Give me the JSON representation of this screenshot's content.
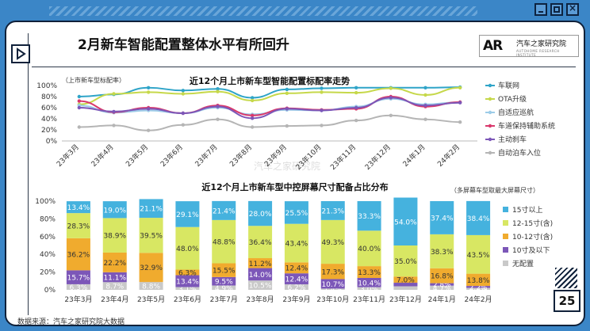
{
  "page": {
    "title": "2月新车智能配置整体水平有所回升",
    "logo_text": "汽车之家研究院",
    "logo_mark": "AR",
    "logo_sub": "AUTOHOME RESEARCH INSTITUTE",
    "page_number": "25",
    "source": "数据来源：汽车之家研究院大数据",
    "watermark": "汽车之家研究院"
  },
  "chart_data": [
    {
      "type": "line",
      "title": "近12个月上市新车型智能配置标配率走势",
      "ylabel": "（上市新车型标配率）",
      "categories": [
        "23年3月",
        "23年4月",
        "23年5月",
        "23年6月",
        "23年7月",
        "23年8月",
        "23年9月",
        "23年10月",
        "23年11月",
        "23年12月",
        "24年1月",
        "24年2月"
      ],
      "yticks": [
        "0%",
        "20%",
        "40%",
        "60%",
        "80%",
        "100%"
      ],
      "ylim": [
        0,
        100
      ],
      "series": [
        {
          "name": "车联网",
          "color": "#2fa4c8",
          "values": [
            80,
            84,
            96,
            91,
            94,
            78,
            93,
            95,
            96,
            96,
            96,
            97
          ]
        },
        {
          "name": "OTA升级",
          "color": "#c6d84a",
          "values": [
            66,
            85,
            88,
            85,
            89,
            73,
            86,
            88,
            87,
            95,
            83,
            96
          ]
        },
        {
          "name": "自适应巡航",
          "color": "#9ccce8",
          "values": [
            64,
            51,
            55,
            50,
            60,
            48,
            56,
            55,
            62,
            76,
            66,
            70
          ]
        },
        {
          "name": "车道保持辅助系统",
          "color": "#d9386c",
          "values": [
            72,
            52,
            60,
            50,
            64,
            46,
            59,
            56,
            58,
            80,
            62,
            70
          ]
        },
        {
          "name": "主动刹车",
          "color": "#7c57b8",
          "values": [
            60,
            53,
            58,
            50,
            62,
            41,
            58,
            55,
            60,
            78,
            64,
            69
          ]
        },
        {
          "name": "自动泊车入位",
          "color": "#b5b5b5",
          "values": [
            25,
            28,
            19,
            29,
            39,
            25,
            27,
            28,
            37,
            46,
            39,
            34
          ]
        }
      ]
    },
    {
      "type": "bar",
      "stacked": true,
      "title": "近12个月上市新车型中控屏幕尺寸配备占比分布",
      "note": "（多屏幕车型取最大屏幕尺寸）",
      "categories": [
        "23年3月",
        "23年4月",
        "23年5月",
        "23年6月",
        "23年7月",
        "23年8月",
        "23年9月",
        "23年10月",
        "23年11月",
        "23年12月",
        "24年1月",
        "24年2月"
      ],
      "yticks": [
        "0%",
        "20%",
        "40%",
        "60%",
        "80%",
        "100%"
      ],
      "ylim": [
        0,
        100
      ],
      "series": [
        {
          "name": "无配置",
          "color": "#c9c9c9",
          "values": [
            6.3,
            8.7,
            8.8,
            3.1,
            4.9,
            10.5,
            6.2,
            1.4,
            3.0,
            4.0,
            4.7,
            2.2
          ],
          "labels": [
            "6.3%",
            "8.7%",
            "8.8%",
            "3.1%",
            "4.9%",
            "10.5%",
            "6.2%",
            "1.4%",
            "3.0%",
            "",
            "4.7%",
            "2.2%"
          ]
        },
        {
          "name": "10寸及以下",
          "color": "#7c57b8",
          "values": [
            15.7,
            11.1,
            0.0,
            13.4,
            9.5,
            14.0,
            12.4,
            10.7,
            10.4,
            4.0,
            2.8,
            2.2
          ],
          "labels": [
            "15.7%",
            "11.1%",
            "",
            "13.4%",
            "9.5%",
            "14.0%",
            "12.4%",
            "10.7%",
            "10.4%",
            "",
            "2.8%",
            "2.2%"
          ]
        },
        {
          "name": "10-12寸(含)",
          "color": "#f0ab2e",
          "values": [
            36.2,
            22.2,
            32.9,
            6.3,
            15.5,
            11.2,
            12.4,
            17.3,
            13.3,
            7.0,
            16.8,
            13.8
          ],
          "labels": [
            "36.2%",
            "22.2%",
            "32.9%",
            "6.3%",
            "15.5%",
            "11.2%",
            "12.4%",
            "17.3%",
            "13.3%",
            "7.0%",
            "16.8%",
            "13.8%"
          ]
        },
        {
          "name": "12-15寸(含)",
          "color": "#d8e763",
          "values": [
            28.3,
            38.9,
            39.5,
            48.0,
            48.8,
            36.4,
            43.4,
            49.3,
            40.0,
            35.0,
            38.3,
            43.5
          ],
          "labels": [
            "28.3%",
            "38.9%",
            "39.5%",
            "48.0%",
            "48.8%",
            "36.4%",
            "43.4%",
            "49.3%",
            "40.0%",
            "35.0%",
            "38.3%",
            "43.5%"
          ]
        },
        {
          "name": "15寸以上",
          "color": "#45b2de",
          "values": [
            13.4,
            19.0,
            21.1,
            29.1,
            21.4,
            28.0,
            25.5,
            21.3,
            33.3,
            54.0,
            37.4,
            38.4
          ],
          "labels": [
            "13.4%",
            "19.0%",
            "21.1%",
            "29.1%",
            "21.4%",
            "28.0%",
            "25.5%",
            "21.3%",
            "33.3%",
            "54.0%",
            "37.4%",
            "38.4%"
          ]
        }
      ],
      "legend_order": [
        "15寸以上",
        "12-15寸(含)",
        "10-12寸(含)",
        "10寸及以下",
        "无配置"
      ]
    }
  ]
}
